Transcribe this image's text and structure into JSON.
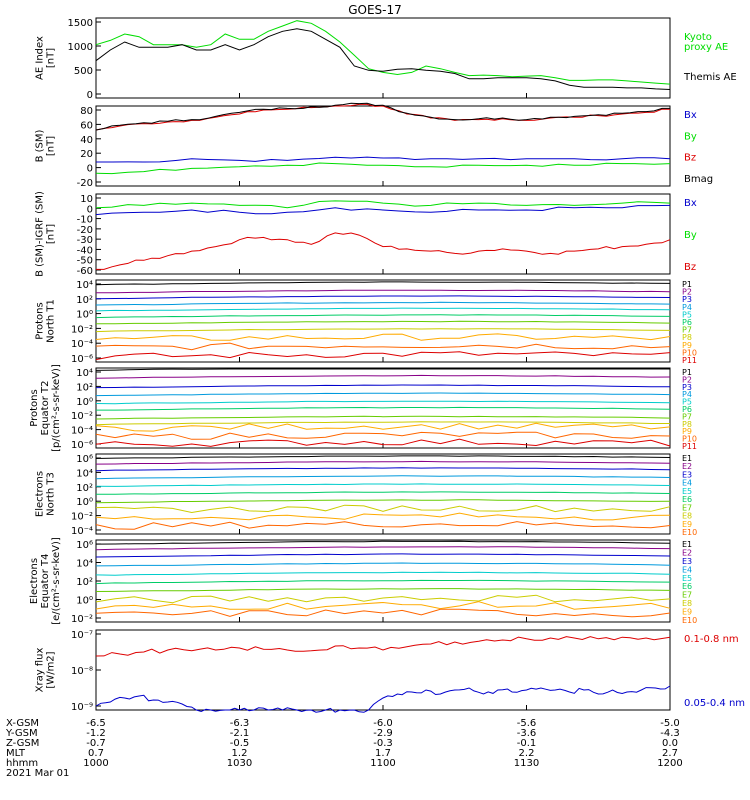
{
  "title": "GOES-17",
  "date_label": "2021 Mar 01",
  "footer": {
    "rows": [
      {
        "label": "X-GSM",
        "values": [
          "-6.5",
          "-6.3",
          "-6.0",
          "-5.6",
          "-5.0"
        ]
      },
      {
        "label": "Y-GSM",
        "values": [
          "-1.2",
          "-2.1",
          "-2.9",
          "-3.6",
          "-4.3"
        ]
      },
      {
        "label": "Z-GSM",
        "values": [
          "-0.7",
          "-0.5",
          "-0.3",
          "-0.1",
          "0.0"
        ]
      },
      {
        "label": "MLT",
        "values": [
          "0.7",
          "1.2",
          "1.7",
          "2.2",
          "2.7"
        ]
      },
      {
        "label": "hhmm",
        "values": [
          "1000",
          "1030",
          "1100",
          "1130",
          "1200"
        ]
      }
    ]
  },
  "colors": {
    "black": "#000000",
    "green": "#00dd00",
    "blue": "#0000cc",
    "red": "#dd0000",
    "channel_palette": [
      "#000000",
      "#880088",
      "#0000cc",
      "#0099dd",
      "#00cccc",
      "#00cc66",
      "#66cc00",
      "#cccc00",
      "#ffaa00",
      "#ff6600",
      "#dd0000"
    ]
  },
  "chart_data": [
    {
      "id": "ae",
      "type": "line",
      "ylabel": "AE Index\n[nT]",
      "yticks": [
        "1500",
        "1000",
        "500",
        "0"
      ],
      "ylim": [
        0,
        1500
      ],
      "legend": [
        {
          "text": "Kyoto",
          "color": "green"
        },
        {
          "text": "proxy AE",
          "color": "green"
        },
        {
          "text": "Themis AE",
          "color": "black"
        }
      ],
      "series": [
        {
          "name": "Kyoto proxy AE",
          "color": "green",
          "x": [
            0,
            3,
            6,
            9,
            12,
            15,
            18,
            21,
            24,
            27,
            30,
            33,
            36,
            39,
            42,
            45,
            48,
            51,
            54,
            57,
            60,
            63,
            66,
            69,
            72,
            75,
            78,
            81,
            84,
            87,
            90,
            93,
            96,
            99,
            102,
            105,
            108,
            111,
            114,
            117,
            120
          ],
          "y": [
            1000,
            1080,
            1200,
            1150,
            1000,
            1000,
            1000,
            950,
            1000,
            1200,
            1100,
            1100,
            1250,
            1350,
            1450,
            1400,
            1250,
            1050,
            800,
            550,
            480,
            440,
            480,
            600,
            550,
            480,
            420,
            430,
            420,
            400,
            410,
            420,
            380,
            330,
            330,
            340,
            340,
            320,
            300,
            280,
            260
          ]
        },
        {
          "name": "Themis AE",
          "color": "black",
          "x": [
            0,
            3,
            6,
            9,
            12,
            15,
            18,
            21,
            24,
            27,
            30,
            33,
            36,
            39,
            42,
            45,
            48,
            51,
            54,
            57,
            60,
            63,
            66,
            69,
            72,
            75,
            78,
            81,
            84,
            87,
            90,
            93,
            96,
            99,
            102,
            105,
            108,
            111,
            114,
            117,
            120
          ],
          "y": [
            700,
            900,
            1050,
            950,
            950,
            950,
            1000,
            900,
            900,
            1000,
            900,
            1000,
            1150,
            1250,
            1300,
            1250,
            1100,
            950,
            600,
            520,
            500,
            540,
            550,
            520,
            500,
            460,
            360,
            360,
            380,
            380,
            380,
            360,
            320,
            240,
            200,
            200,
            200,
            190,
            190,
            170,
            160
          ]
        }
      ]
    },
    {
      "id": "bsm",
      "type": "line",
      "ylabel": "B (SM)\n[nT]",
      "yticks": [
        "80",
        "60",
        "40",
        "20",
        "0",
        "-20"
      ],
      "ylim": [
        -20,
        80
      ],
      "legend": [
        {
          "text": "Bx",
          "color": "blue"
        },
        {
          "text": "By",
          "color": "green"
        },
        {
          "text": "Bz",
          "color": "red"
        },
        {
          "text": "Bmag",
          "color": "black"
        }
      ],
      "series": [
        {
          "name": "Bx",
          "color": "blue",
          "x": [
            0,
            10,
            20,
            30,
            40,
            50,
            60,
            70,
            80,
            90,
            100,
            110,
            120
          ],
          "y": [
            10,
            10,
            14,
            12,
            12,
            16,
            15,
            14,
            14,
            14,
            14,
            14,
            14
          ]
        },
        {
          "name": "By",
          "color": "green",
          "x": [
            0,
            10,
            20,
            30,
            40,
            50,
            60,
            70,
            80,
            90,
            100,
            110,
            120
          ],
          "y": [
            -4,
            -2,
            2,
            4,
            6,
            8,
            6,
            4,
            6,
            6,
            6,
            8,
            8
          ]
        },
        {
          "name": "Bz",
          "color": "red",
          "x": [
            0,
            5,
            10,
            15,
            20,
            25,
            30,
            35,
            40,
            45,
            50,
            55,
            60,
            65,
            70,
            75,
            80,
            85,
            90,
            95,
            100,
            105,
            110,
            115,
            120
          ],
          "y": [
            50,
            55,
            58,
            60,
            62,
            66,
            70,
            75,
            76,
            78,
            80,
            82,
            80,
            70,
            65,
            62,
            63,
            64,
            62,
            65,
            66,
            68,
            70,
            72,
            76
          ]
        },
        {
          "name": "Bmag",
          "color": "black",
          "x": [
            0,
            5,
            10,
            15,
            20,
            25,
            30,
            35,
            40,
            45,
            50,
            55,
            60,
            65,
            70,
            75,
            80,
            85,
            90,
            95,
            100,
            105,
            110,
            115,
            120
          ],
          "y": [
            50,
            56,
            59,
            61,
            63,
            67,
            72,
            76,
            77,
            79,
            81,
            83,
            81,
            71,
            66,
            63,
            64,
            65,
            63,
            66,
            67,
            69,
            71,
            73,
            77
          ]
        }
      ]
    },
    {
      "id": "bigrf",
      "type": "line",
      "ylabel": "B (SM)-IGRF (SM)\n[nT]",
      "yticks": [
        "10",
        "0",
        "-10",
        "-20",
        "-30",
        "-40",
        "-50",
        "-60"
      ],
      "ylim": [
        -60,
        10
      ],
      "legend": [
        {
          "text": "Bx",
          "color": "blue"
        },
        {
          "text": "By",
          "color": "green"
        },
        {
          "text": "Bz",
          "color": "red"
        }
      ],
      "series": [
        {
          "name": "Bx",
          "color": "blue",
          "x": [
            0,
            10,
            20,
            30,
            40,
            50,
            60,
            70,
            80,
            90,
            100,
            110,
            120
          ],
          "y": [
            -8,
            -6,
            -4,
            -6,
            -6,
            -2,
            -4,
            -6,
            -4,
            -4,
            -2,
            -2,
            0
          ]
        },
        {
          "name": "By",
          "color": "green",
          "x": [
            0,
            10,
            20,
            30,
            40,
            50,
            60,
            70,
            80,
            90,
            100,
            110,
            120
          ],
          "y": [
            -2,
            0,
            2,
            0,
            -2,
            4,
            2,
            0,
            2,
            0,
            0,
            2,
            2
          ]
        },
        {
          "name": "Bz",
          "color": "red",
          "x": [
            0,
            5,
            10,
            15,
            20,
            25,
            30,
            35,
            40,
            45,
            50,
            55,
            60,
            65,
            70,
            75,
            80,
            85,
            90,
            95,
            100,
            105,
            110,
            115,
            120
          ],
          "y": [
            -56,
            -52,
            -48,
            -44,
            -40,
            -36,
            -30,
            -28,
            -30,
            -34,
            -24,
            -26,
            -36,
            -38,
            -40,
            -42,
            -40,
            -38,
            -40,
            -42,
            -40,
            -38,
            -36,
            -34,
            -30
          ]
        }
      ]
    },
    {
      "id": "pn",
      "type": "line",
      "log": true,
      "ylabel": "Protons\nNorth T1",
      "yticks": [
        "10⁴",
        "10²",
        "10⁰",
        "10⁻²",
        "10⁻⁴",
        "10⁻⁶"
      ],
      "ylim_exp": [
        -6,
        4
      ],
      "channels": [
        "P1",
        "P2",
        "P3",
        "P4",
        "P5",
        "P6",
        "P7",
        "P8",
        "P9",
        "P10",
        "P11"
      ],
      "levels": [
        3.5,
        2.5,
        1.8,
        1.0,
        0.3,
        -0.5,
        -1.3,
        -2.2,
        -3.2,
        -4.2,
        -5.3
      ]
    },
    {
      "id": "pe",
      "type": "line",
      "log": true,
      "ylabel": "Protons\nEquator T2\n[p/(cm²-s-sr-keV)]",
      "yticks": [
        "10⁴",
        "10²",
        "10⁰",
        "10⁻²",
        "10⁻⁴",
        "10⁻⁶"
      ],
      "ylim_exp": [
        -6,
        4
      ],
      "channels": [
        "P1",
        "P2",
        "P3",
        "P4",
        "P5",
        "P6",
        "P7",
        "P8",
        "P9",
        "P10",
        "P11"
      ],
      "levels": [
        3.8,
        2.8,
        1.6,
        0.6,
        -0.4,
        -1.2,
        -2.3,
        -3.0,
        -3.5,
        -4.6,
        -5.5
      ]
    },
    {
      "id": "en",
      "type": "line",
      "log": true,
      "ylabel": "Electrons\nNorth T3",
      "yticks": [
        "10⁶",
        "10⁴",
        "10²",
        "10⁰",
        "10⁻²",
        "10⁻⁴"
      ],
      "ylim_exp": [
        -4,
        6
      ],
      "channels": [
        "E1",
        "E2",
        "E3",
        "E4",
        "E5",
        "E6",
        "E7",
        "E8",
        "E9",
        "E10"
      ],
      "levels": [
        5.5,
        4.8,
        4.0,
        3.0,
        2.0,
        1.0,
        0.0,
        -1.0,
        -2.0,
        -3.0
      ]
    },
    {
      "id": "ee",
      "type": "line",
      "log": true,
      "ylabel": "Electrons\nEquator T4\n[e/(cm²-s-sr-keV)]",
      "yticks": [
        "10⁶",
        "10⁴",
        "10²",
        "10⁰",
        "10⁻²"
      ],
      "ylim_exp": [
        -3,
        6
      ],
      "channels": [
        "E1",
        "E2",
        "E3",
        "E4",
        "E5",
        "E6",
        "E7",
        "E8",
        "E9",
        "E10"
      ],
      "levels": [
        5.6,
        5.0,
        4.2,
        3.2,
        2.2,
        1.3,
        0.4,
        -0.6,
        -1.4,
        -2.2
      ]
    },
    {
      "id": "xray",
      "type": "line",
      "log": true,
      "ylabel": "Xray flux\n[W/m2]",
      "yticks": [
        "10⁻⁷",
        "10⁻⁸",
        "10⁻⁹"
      ],
      "ylim_exp": [
        -9,
        -7
      ],
      "legend": [
        {
          "text": "0.1-0.8 nm",
          "color": "red"
        },
        {
          "text": "0.05-0.4 nm",
          "color": "blue"
        }
      ],
      "series": [
        {
          "name": "0.1-0.8 nm",
          "color": "red",
          "x": [
            0,
            5,
            10,
            15,
            20,
            25,
            30,
            35,
            40,
            45,
            50,
            55,
            60,
            65,
            70,
            75,
            80,
            85,
            90,
            95,
            100,
            105,
            110,
            115,
            120
          ],
          "y": [
            -7.65,
            -7.6,
            -7.55,
            -7.5,
            -7.52,
            -7.5,
            -7.45,
            -7.48,
            -7.5,
            -7.52,
            -7.4,
            -7.45,
            -7.5,
            -7.42,
            -7.35,
            -7.3,
            -7.28,
            -7.25,
            -7.22,
            -7.2,
            -7.2,
            -7.22,
            -7.18,
            -7.2,
            -7.18
          ]
        },
        {
          "name": "0.05-0.4 nm",
          "color": "blue",
          "x": [
            0,
            3,
            6,
            9,
            12,
            15,
            18,
            21,
            24,
            27,
            30,
            33,
            36,
            39,
            42,
            45,
            48,
            51,
            54,
            57,
            60,
            63,
            66,
            69,
            72,
            75,
            78,
            81,
            84,
            87,
            90,
            93,
            96,
            99,
            102,
            105,
            108,
            111,
            114,
            117,
            120
          ],
          "y": [
            -8.9,
            -8.8,
            -8.7,
            -8.65,
            -8.75,
            -8.8,
            -8.85,
            -9.0,
            -9.0,
            -9.0,
            -9.0,
            -9.0,
            -9.0,
            -9.0,
            -9.0,
            -9.0,
            -9.0,
            -9.0,
            -9.0,
            -9.0,
            -8.7,
            -8.6,
            -8.55,
            -8.5,
            -8.6,
            -8.5,
            -8.45,
            -8.6,
            -8.5,
            -8.55,
            -8.5,
            -8.45,
            -8.5,
            -8.55,
            -8.5,
            -8.6,
            -8.5,
            -8.55,
            -8.5,
            -8.45,
            -8.4
          ]
        }
      ]
    }
  ]
}
